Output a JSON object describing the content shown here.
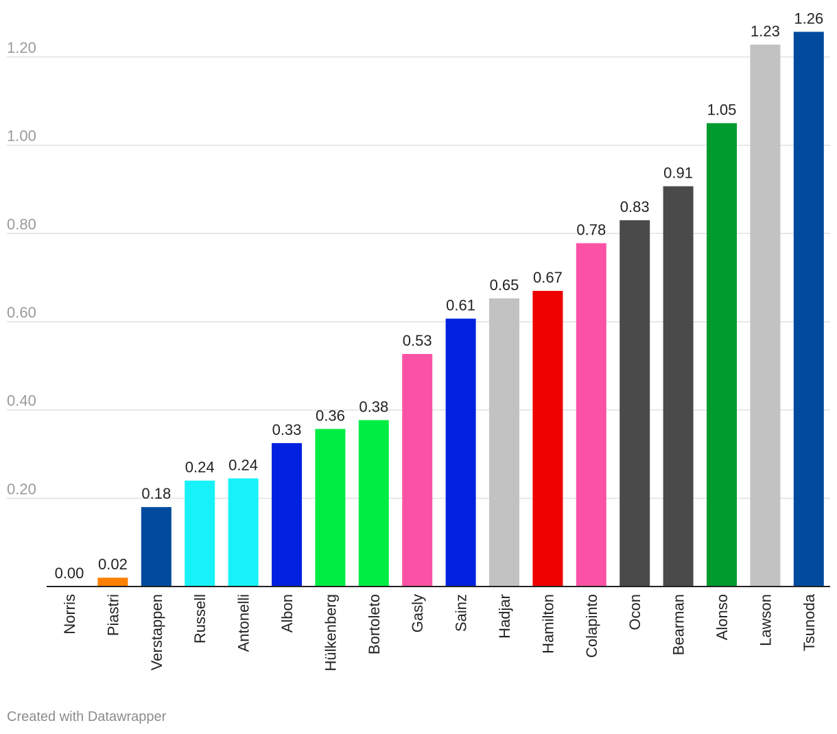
{
  "chart_data": {
    "type": "bar",
    "title": "",
    "xlabel": "",
    "ylabel": "",
    "ylim": [
      0,
      1.28
    ],
    "y_ticks": [
      0.2,
      0.4,
      0.6,
      0.8,
      1.0,
      1.2
    ],
    "y_tick_labels": [
      "0.20",
      "0.40",
      "0.60",
      "0.80",
      "1.00",
      "1.20"
    ],
    "grid": true,
    "categories": [
      "Norris",
      "Piastri",
      "Verstappen",
      "Russell",
      "Antonelli",
      "Albon",
      "Hülkenberg",
      "Bortoleto",
      "Gasly",
      "Sainz",
      "Hadjar",
      "Hamilton",
      "Colapinto",
      "Ocon",
      "Bearman",
      "Alonso",
      "Lawson",
      "Tsunoda"
    ],
    "values": [
      0.0,
      0.02,
      0.18,
      0.24,
      0.245,
      0.325,
      0.357,
      0.377,
      0.527,
      0.607,
      0.653,
      0.67,
      0.778,
      0.83,
      0.907,
      1.05,
      1.228,
      1.257
    ],
    "value_labels": [
      "0.00",
      "0.02",
      "0.18",
      "0.24",
      "0.24",
      "0.33",
      "0.36",
      "0.38",
      "0.53",
      "0.61",
      "0.65",
      "0.67",
      "0.78",
      "0.83",
      "0.91",
      "1.05",
      "1.23",
      "1.26"
    ],
    "colors": [
      "#ff8000",
      "#ff8000",
      "#004b9e",
      "#17f2f8",
      "#17f2f8",
      "#0022e0",
      "#00ee44",
      "#00ee44",
      "#fb52a6",
      "#0022e0",
      "#c2c2c2",
      "#ee0000",
      "#fb52a6",
      "#4a4a4a",
      "#4a4a4a",
      "#009b2f",
      "#c2c2c2",
      "#004b9e"
    ]
  },
  "footer": {
    "credit": "Created with Datawrapper"
  }
}
